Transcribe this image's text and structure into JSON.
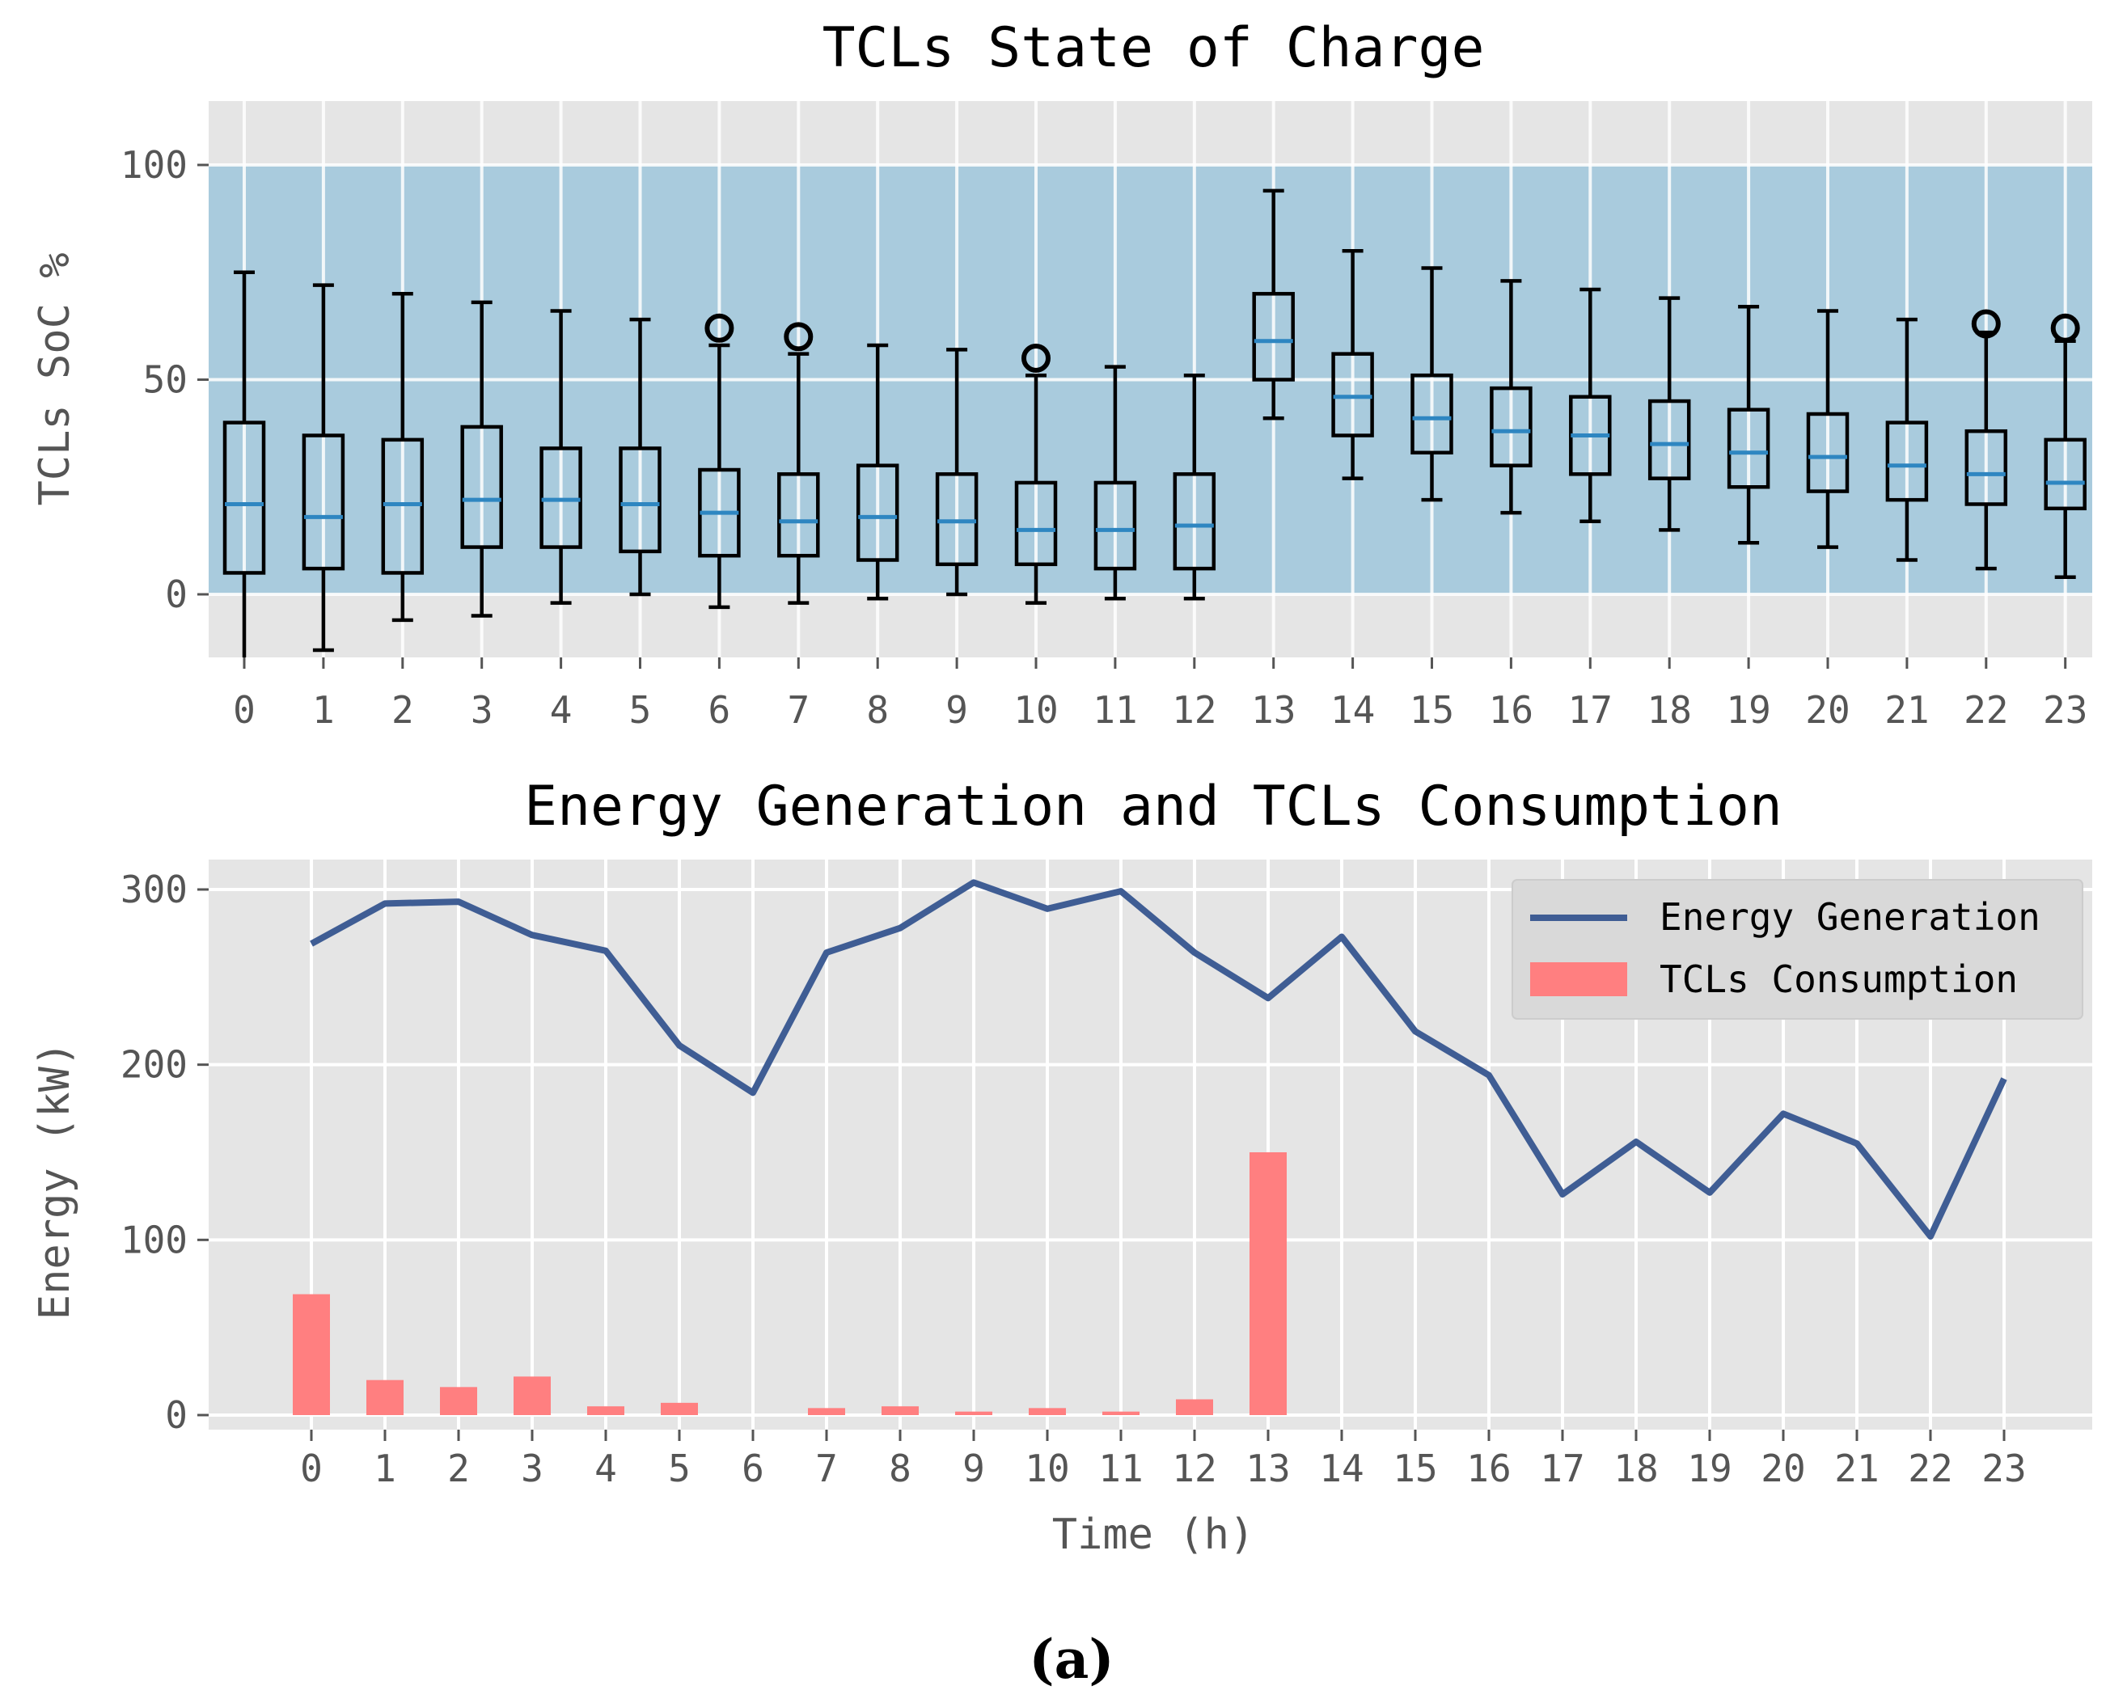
{
  "chart_data": [
    {
      "type": "box",
      "title": "TCLs State of Charge",
      "xlabel": "",
      "ylabel": "TCLs SoC %",
      "categories": [
        "0",
        "1",
        "2",
        "3",
        "4",
        "5",
        "6",
        "7",
        "8",
        "9",
        "10",
        "11",
        "12",
        "13",
        "14",
        "15",
        "16",
        "17",
        "18",
        "19",
        "20",
        "21",
        "22",
        "23"
      ],
      "yticks": [
        "0",
        "50",
        "100"
      ],
      "ylim": [
        -15,
        115
      ],
      "band": [
        0,
        100
      ],
      "boxes": [
        {
          "whisker_low": -15,
          "q1": 5,
          "median": 21,
          "q3": 40,
          "whisker_high": 75,
          "outliers": []
        },
        {
          "whisker_low": -13,
          "q1": 6,
          "median": 18,
          "q3": 37,
          "whisker_high": 72,
          "outliers": []
        },
        {
          "whisker_low": -6,
          "q1": 5,
          "median": 21,
          "q3": 36,
          "whisker_high": 70,
          "outliers": []
        },
        {
          "whisker_low": -5,
          "q1": 11,
          "median": 22,
          "q3": 39,
          "whisker_high": 68,
          "outliers": []
        },
        {
          "whisker_low": -2,
          "q1": 11,
          "median": 22,
          "q3": 34,
          "whisker_high": 66,
          "outliers": []
        },
        {
          "whisker_low": 0,
          "q1": 10,
          "median": 21,
          "q3": 34,
          "whisker_high": 64,
          "outliers": []
        },
        {
          "whisker_low": -3,
          "q1": 9,
          "median": 19,
          "q3": 29,
          "whisker_high": 58,
          "outliers": [
            62
          ]
        },
        {
          "whisker_low": -2,
          "q1": 9,
          "median": 17,
          "q3": 28,
          "whisker_high": 56,
          "outliers": [
            60
          ]
        },
        {
          "whisker_low": -1,
          "q1": 8,
          "median": 18,
          "q3": 30,
          "whisker_high": 58,
          "outliers": []
        },
        {
          "whisker_low": 0,
          "q1": 7,
          "median": 17,
          "q3": 28,
          "whisker_high": 57,
          "outliers": []
        },
        {
          "whisker_low": -2,
          "q1": 7,
          "median": 15,
          "q3": 26,
          "whisker_high": 51,
          "outliers": [
            55
          ]
        },
        {
          "whisker_low": -1,
          "q1": 6,
          "median": 15,
          "q3": 26,
          "whisker_high": 53,
          "outliers": []
        },
        {
          "whisker_low": -1,
          "q1": 6,
          "median": 16,
          "q3": 28,
          "whisker_high": 51,
          "outliers": []
        },
        {
          "whisker_low": 41,
          "q1": 50,
          "median": 59,
          "q3": 70,
          "whisker_high": 94,
          "outliers": []
        },
        {
          "whisker_low": 27,
          "q1": 37,
          "median": 46,
          "q3": 56,
          "whisker_high": 80,
          "outliers": []
        },
        {
          "whisker_low": 22,
          "q1": 33,
          "median": 41,
          "q3": 51,
          "whisker_high": 76,
          "outliers": []
        },
        {
          "whisker_low": 19,
          "q1": 30,
          "median": 38,
          "q3": 48,
          "whisker_high": 73,
          "outliers": []
        },
        {
          "whisker_low": 17,
          "q1": 28,
          "median": 37,
          "q3": 46,
          "whisker_high": 71,
          "outliers": []
        },
        {
          "whisker_low": 15,
          "q1": 27,
          "median": 35,
          "q3": 45,
          "whisker_high": 69,
          "outliers": []
        },
        {
          "whisker_low": 12,
          "q1": 25,
          "median": 33,
          "q3": 43,
          "whisker_high": 67,
          "outliers": []
        },
        {
          "whisker_low": 11,
          "q1": 24,
          "median": 32,
          "q3": 42,
          "whisker_high": 66,
          "outliers": []
        },
        {
          "whisker_low": 8,
          "q1": 22,
          "median": 30,
          "q3": 40,
          "whisker_high": 64,
          "outliers": []
        },
        {
          "whisker_low": 6,
          "q1": 21,
          "median": 28,
          "q3": 38,
          "whisker_high": 61,
          "outliers": [
            63
          ]
        },
        {
          "whisker_low": 4,
          "q1": 20,
          "median": 26,
          "q3": 36,
          "whisker_high": 59,
          "outliers": [
            62
          ]
        }
      ]
    },
    {
      "type": "bar+line",
      "title": "Energy Generation and TCLs Consumption",
      "xlabel": "Time (h)",
      "ylabel": "Energy (kW)",
      "categories": [
        "0",
        "1",
        "2",
        "3",
        "4",
        "5",
        "6",
        "7",
        "8",
        "9",
        "10",
        "11",
        "12",
        "13",
        "14",
        "15",
        "16",
        "17",
        "18",
        "19",
        "20",
        "21",
        "22",
        "23"
      ],
      "yticks": [
        "0",
        "100",
        "200",
        "300"
      ],
      "ylim": [
        0,
        315
      ],
      "series": [
        {
          "name": "Energy Generation",
          "type": "line",
          "color": "#3f5d94",
          "values": [
            269,
            292,
            293,
            274,
            265,
            211,
            184,
            264,
            278,
            304,
            289,
            299,
            264,
            238,
            273,
            219,
            194,
            126,
            156,
            127,
            172,
            155,
            102,
            192
          ]
        },
        {
          "name": "TCLs Consumption",
          "type": "bar",
          "color": "#ff7f80",
          "values": [
            69,
            20,
            16,
            22,
            5,
            7,
            0,
            4,
            5,
            2,
            4,
            2,
            9,
            150,
            0,
            0,
            0,
            0,
            0,
            0,
            0,
            0,
            0,
            0
          ]
        }
      ],
      "legend_position": "top-right"
    }
  ],
  "caption": "(a)",
  "colors": {
    "plot_bg": "#e5e5e5",
    "band": "#a9cbdd",
    "median": "#2e86c1"
  }
}
